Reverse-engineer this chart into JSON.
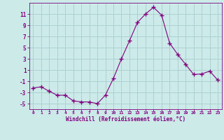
{
  "x": [
    0,
    1,
    2,
    3,
    4,
    5,
    6,
    7,
    8,
    9,
    10,
    11,
    12,
    13,
    14,
    15,
    16,
    17,
    18,
    19,
    20,
    21,
    22,
    23
  ],
  "y": [
    -2.2,
    -2.0,
    -2.8,
    -3.5,
    -3.5,
    -4.5,
    -4.7,
    -4.7,
    -5.0,
    -3.5,
    -0.5,
    3.0,
    6.2,
    9.5,
    11.0,
    12.2,
    10.8,
    5.8,
    3.8,
    2.0,
    0.2,
    0.3,
    0.8,
    -0.8
  ],
  "line_color": "#800080",
  "marker": "+",
  "marker_size": 4,
  "bg_color": "#cceae8",
  "grid_color": "#aacccc",
  "xlabel": "Windchill (Refroidissement éolien,°C)",
  "xlabel_color": "#800080",
  "tick_color": "#800080",
  "spine_color": "#800080",
  "ylim": [
    -6,
    13
  ],
  "yticks": [
    -5,
    -3,
    -1,
    1,
    3,
    5,
    7,
    9,
    11
  ],
  "xlim": [
    -0.5,
    23.5
  ],
  "xticks": [
    0,
    1,
    2,
    3,
    4,
    5,
    6,
    7,
    8,
    9,
    10,
    11,
    12,
    13,
    14,
    15,
    16,
    17,
    18,
    19,
    20,
    21,
    22,
    23
  ]
}
